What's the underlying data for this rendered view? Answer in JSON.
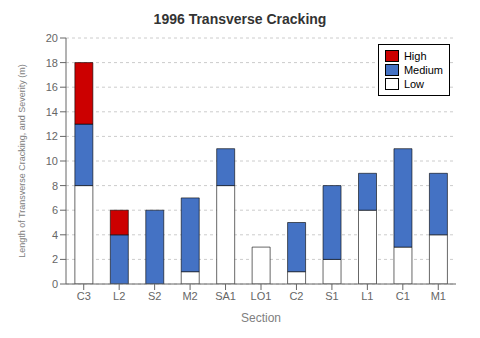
{
  "chart_data": {
    "type": "bar",
    "stacked": true,
    "title": "1996 Transverse Cracking",
    "xlabel": "Section",
    "ylabel": "Length of Transverse Cracking, and Severity (m)",
    "categories": [
      "C3",
      "L2",
      "S2",
      "M2",
      "SA1",
      "LO1",
      "C2",
      "S1",
      "L1",
      "C1",
      "M1"
    ],
    "series": [
      {
        "name": "Low",
        "color": "#ffffff",
        "values": [
          8,
          0,
          0,
          1,
          8,
          3,
          1,
          2,
          6,
          3,
          4
        ]
      },
      {
        "name": "Medium",
        "color": "#4472c4",
        "values": [
          5,
          4,
          6,
          6,
          3,
          0,
          4,
          6,
          3,
          8,
          5
        ]
      },
      {
        "name": "High",
        "color": "#cc0000",
        "values": [
          5,
          2,
          0,
          0,
          0,
          0,
          0,
          0,
          0,
          0,
          0
        ]
      }
    ],
    "ylim": [
      0,
      20
    ],
    "yticks": [
      0,
      2,
      4,
      6,
      8,
      10,
      12,
      14,
      16,
      18,
      20
    ],
    "grid": true,
    "legend": "upper right"
  }
}
